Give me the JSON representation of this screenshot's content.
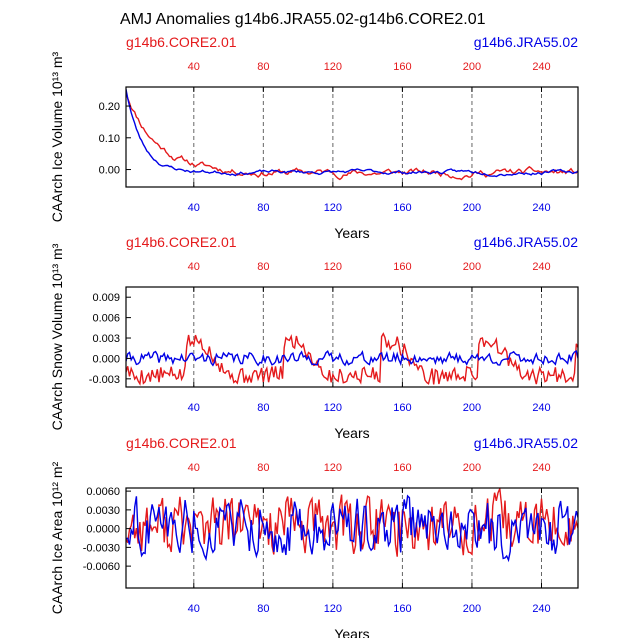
{
  "title": "AMJ Anomalies g14b6.JRA55.02-g14b6.CORE2.01",
  "colors": {
    "core": "#e41a1c",
    "jra": "#0000e6",
    "axis": "#000000",
    "grid": "#666666"
  },
  "run_labels": {
    "core": "g14b6.CORE2.01",
    "jra": "g14b6.JRA55.02"
  },
  "chart_data": [
    {
      "type": "line",
      "ylabel": "CAArch Ice Volume 10¹³ m³",
      "xlabel": "Years",
      "xlim": [
        1,
        261
      ],
      "ylim": [
        -0.055,
        0.26
      ],
      "xticks": [
        40,
        80,
        120,
        160,
        200,
        240
      ],
      "yticks": [
        0.0,
        0.1,
        0.2
      ],
      "ytick_labels": [
        "0.00",
        "0.10",
        "0.20"
      ],
      "grid": "vertical dashed at x ticks",
      "series": [
        {
          "name": "g14b6.CORE2.01",
          "color": "#e41a1c",
          "style": "decay",
          "params": {
            "y0": 0.245,
            "tau": 18,
            "amp": 0.015,
            "base": -0.01,
            "seed": 11
          }
        },
        {
          "name": "g14b6.JRA55.02",
          "color": "#0000e6",
          "style": "decay",
          "params": {
            "y0": 0.255,
            "tau": 9,
            "amp": 0.008,
            "base": -0.008,
            "seed": 23
          }
        }
      ]
    },
    {
      "type": "line",
      "ylabel": "CAArch Snow Volume 10¹³ m³",
      "xlabel": "Years",
      "xlim": [
        1,
        261
      ],
      "ylim": [
        -0.0042,
        0.0105
      ],
      "xticks": [
        40,
        80,
        120,
        160,
        200,
        240
      ],
      "yticks": [
        -0.003,
        0.0,
        0.003,
        0.006,
        0.009
      ],
      "ytick_labels": [
        "-0.003",
        "0.000",
        "0.003",
        "0.006",
        "0.009"
      ],
      "grid": "vertical dashed at x ticks",
      "series": [
        {
          "name": "g14b6.CORE2.01",
          "color": "#e41a1c",
          "style": "cycle",
          "params": {
            "period": 56,
            "amp": 0.004,
            "base": -0.0015,
            "noise": 0.0012,
            "seed": 5
          }
        },
        {
          "name": "g14b6.JRA55.02",
          "color": "#0000e6",
          "style": "noise",
          "params": {
            "amp": 0.0009,
            "base": 0.0,
            "seed": 41
          }
        }
      ]
    },
    {
      "type": "line",
      "ylabel": "CAArch Ice Area 10¹² m²",
      "xlabel": "Years",
      "xlim": [
        1,
        261
      ],
      "ylim": [
        -0.0095,
        0.0065
      ],
      "xticks": [
        40,
        80,
        120,
        160,
        200,
        240
      ],
      "yticks": [
        -0.006,
        -0.003,
        0.0,
        0.003,
        0.006
      ],
      "ytick_labels": [
        "-0.0060",
        "-0.0030",
        "0.0000",
        "0.0030",
        "0.0060"
      ],
      "grid": "vertical dashed at x ticks",
      "series": [
        {
          "name": "g14b6.CORE2.01",
          "color": "#e41a1c",
          "style": "noise",
          "params": {
            "amp": 0.0048,
            "base": 0.0005,
            "seed": 77
          }
        },
        {
          "name": "g14b6.JRA55.02",
          "color": "#0000e6",
          "style": "noise",
          "params": {
            "amp": 0.0045,
            "base": 0.0003,
            "seed": 78
          }
        }
      ]
    }
  ]
}
